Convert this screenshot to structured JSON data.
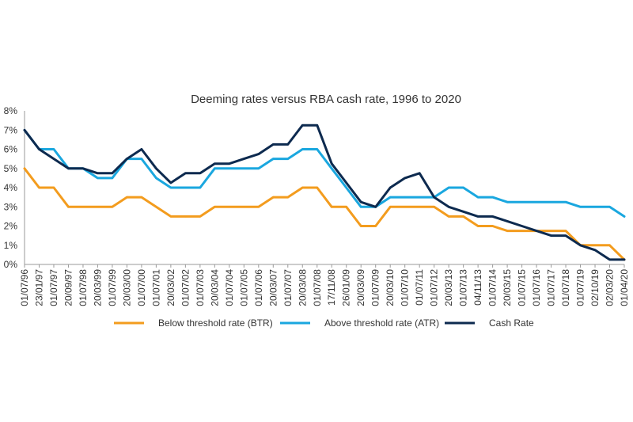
{
  "chart_data": {
    "type": "line",
    "title": "Deeming rates versus RBA cash rate, 1996 to 2020",
    "xlabel": "",
    "ylabel": "",
    "ylim": [
      0,
      8
    ],
    "yticks": [
      "0%",
      "1%",
      "2%",
      "3%",
      "4%",
      "5%",
      "6%",
      "7%",
      "8%"
    ],
    "grid": false,
    "legend_position": "bottom",
    "x": [
      "01/07/96",
      "23/01/97",
      "01/07/97",
      "20/09/97",
      "01/07/98",
      "20/03/99",
      "01/07/99",
      "20/03/00",
      "01/07/00",
      "01/07/01",
      "20/03/02",
      "01/07/02",
      "01/07/03",
      "20/03/04",
      "01/07/04",
      "01/07/05",
      "01/07/06",
      "20/03/07",
      "01/07/07",
      "20/03/08",
      "01/07/08",
      "17/11/08",
      "26/01/09",
      "20/03/09",
      "01/07/09",
      "20/03/10",
      "01/07/10",
      "01/07/11",
      "01/07/12",
      "20/03/13",
      "01/07/13",
      "04/11/13",
      "01/07/14",
      "20/03/15",
      "01/07/15",
      "01/07/16",
      "01/07/17",
      "01/07/18",
      "01/07/19",
      "02/10/19",
      "02/03/20",
      "01/04/20"
    ],
    "series": [
      {
        "name": "Below threshold rate (BTR)",
        "color": "#f39c1e",
        "values": [
          5,
          4,
          4,
          3,
          3,
          3,
          3,
          3.5,
          3.5,
          3,
          2.5,
          2.5,
          2.5,
          3,
          3,
          3,
          3,
          3.5,
          3.5,
          4,
          4,
          3,
          3,
          2,
          2,
          3,
          3,
          3,
          3,
          2.5,
          2.5,
          2,
          2,
          1.75,
          1.75,
          1.75,
          1.75,
          1.75,
          1,
          1,
          1,
          0.25
        ]
      },
      {
        "name": "Above threshold rate (ATR)",
        "color": "#1aa7df",
        "values": [
          7,
          6,
          6,
          5,
          5,
          4.5,
          4.5,
          5.5,
          5.5,
          4.5,
          4,
          4,
          4,
          5,
          5,
          5,
          5,
          5.5,
          5.5,
          6,
          6,
          5,
          4,
          3,
          3,
          3.5,
          3.5,
          3.5,
          3.5,
          4,
          4,
          3.5,
          3.5,
          3.25,
          3.25,
          3.25,
          3.25,
          3.25,
          3,
          3,
          3,
          2.5
        ]
      },
      {
        "name": "Cash Rate",
        "color": "#0d2a4f",
        "values": [
          7,
          6,
          5.5,
          5,
          5,
          4.75,
          4.75,
          5.5,
          6,
          5,
          4.25,
          4.75,
          4.75,
          5.25,
          5.25,
          5.5,
          5.75,
          6.25,
          6.25,
          7.25,
          7.25,
          5.25,
          4.25,
          3.25,
          3,
          4,
          4.5,
          4.75,
          3.5,
          3,
          2.75,
          2.5,
          2.5,
          2.25,
          2,
          1.75,
          1.5,
          1.5,
          1,
          0.75,
          0.25,
          0.25
        ]
      }
    ]
  }
}
